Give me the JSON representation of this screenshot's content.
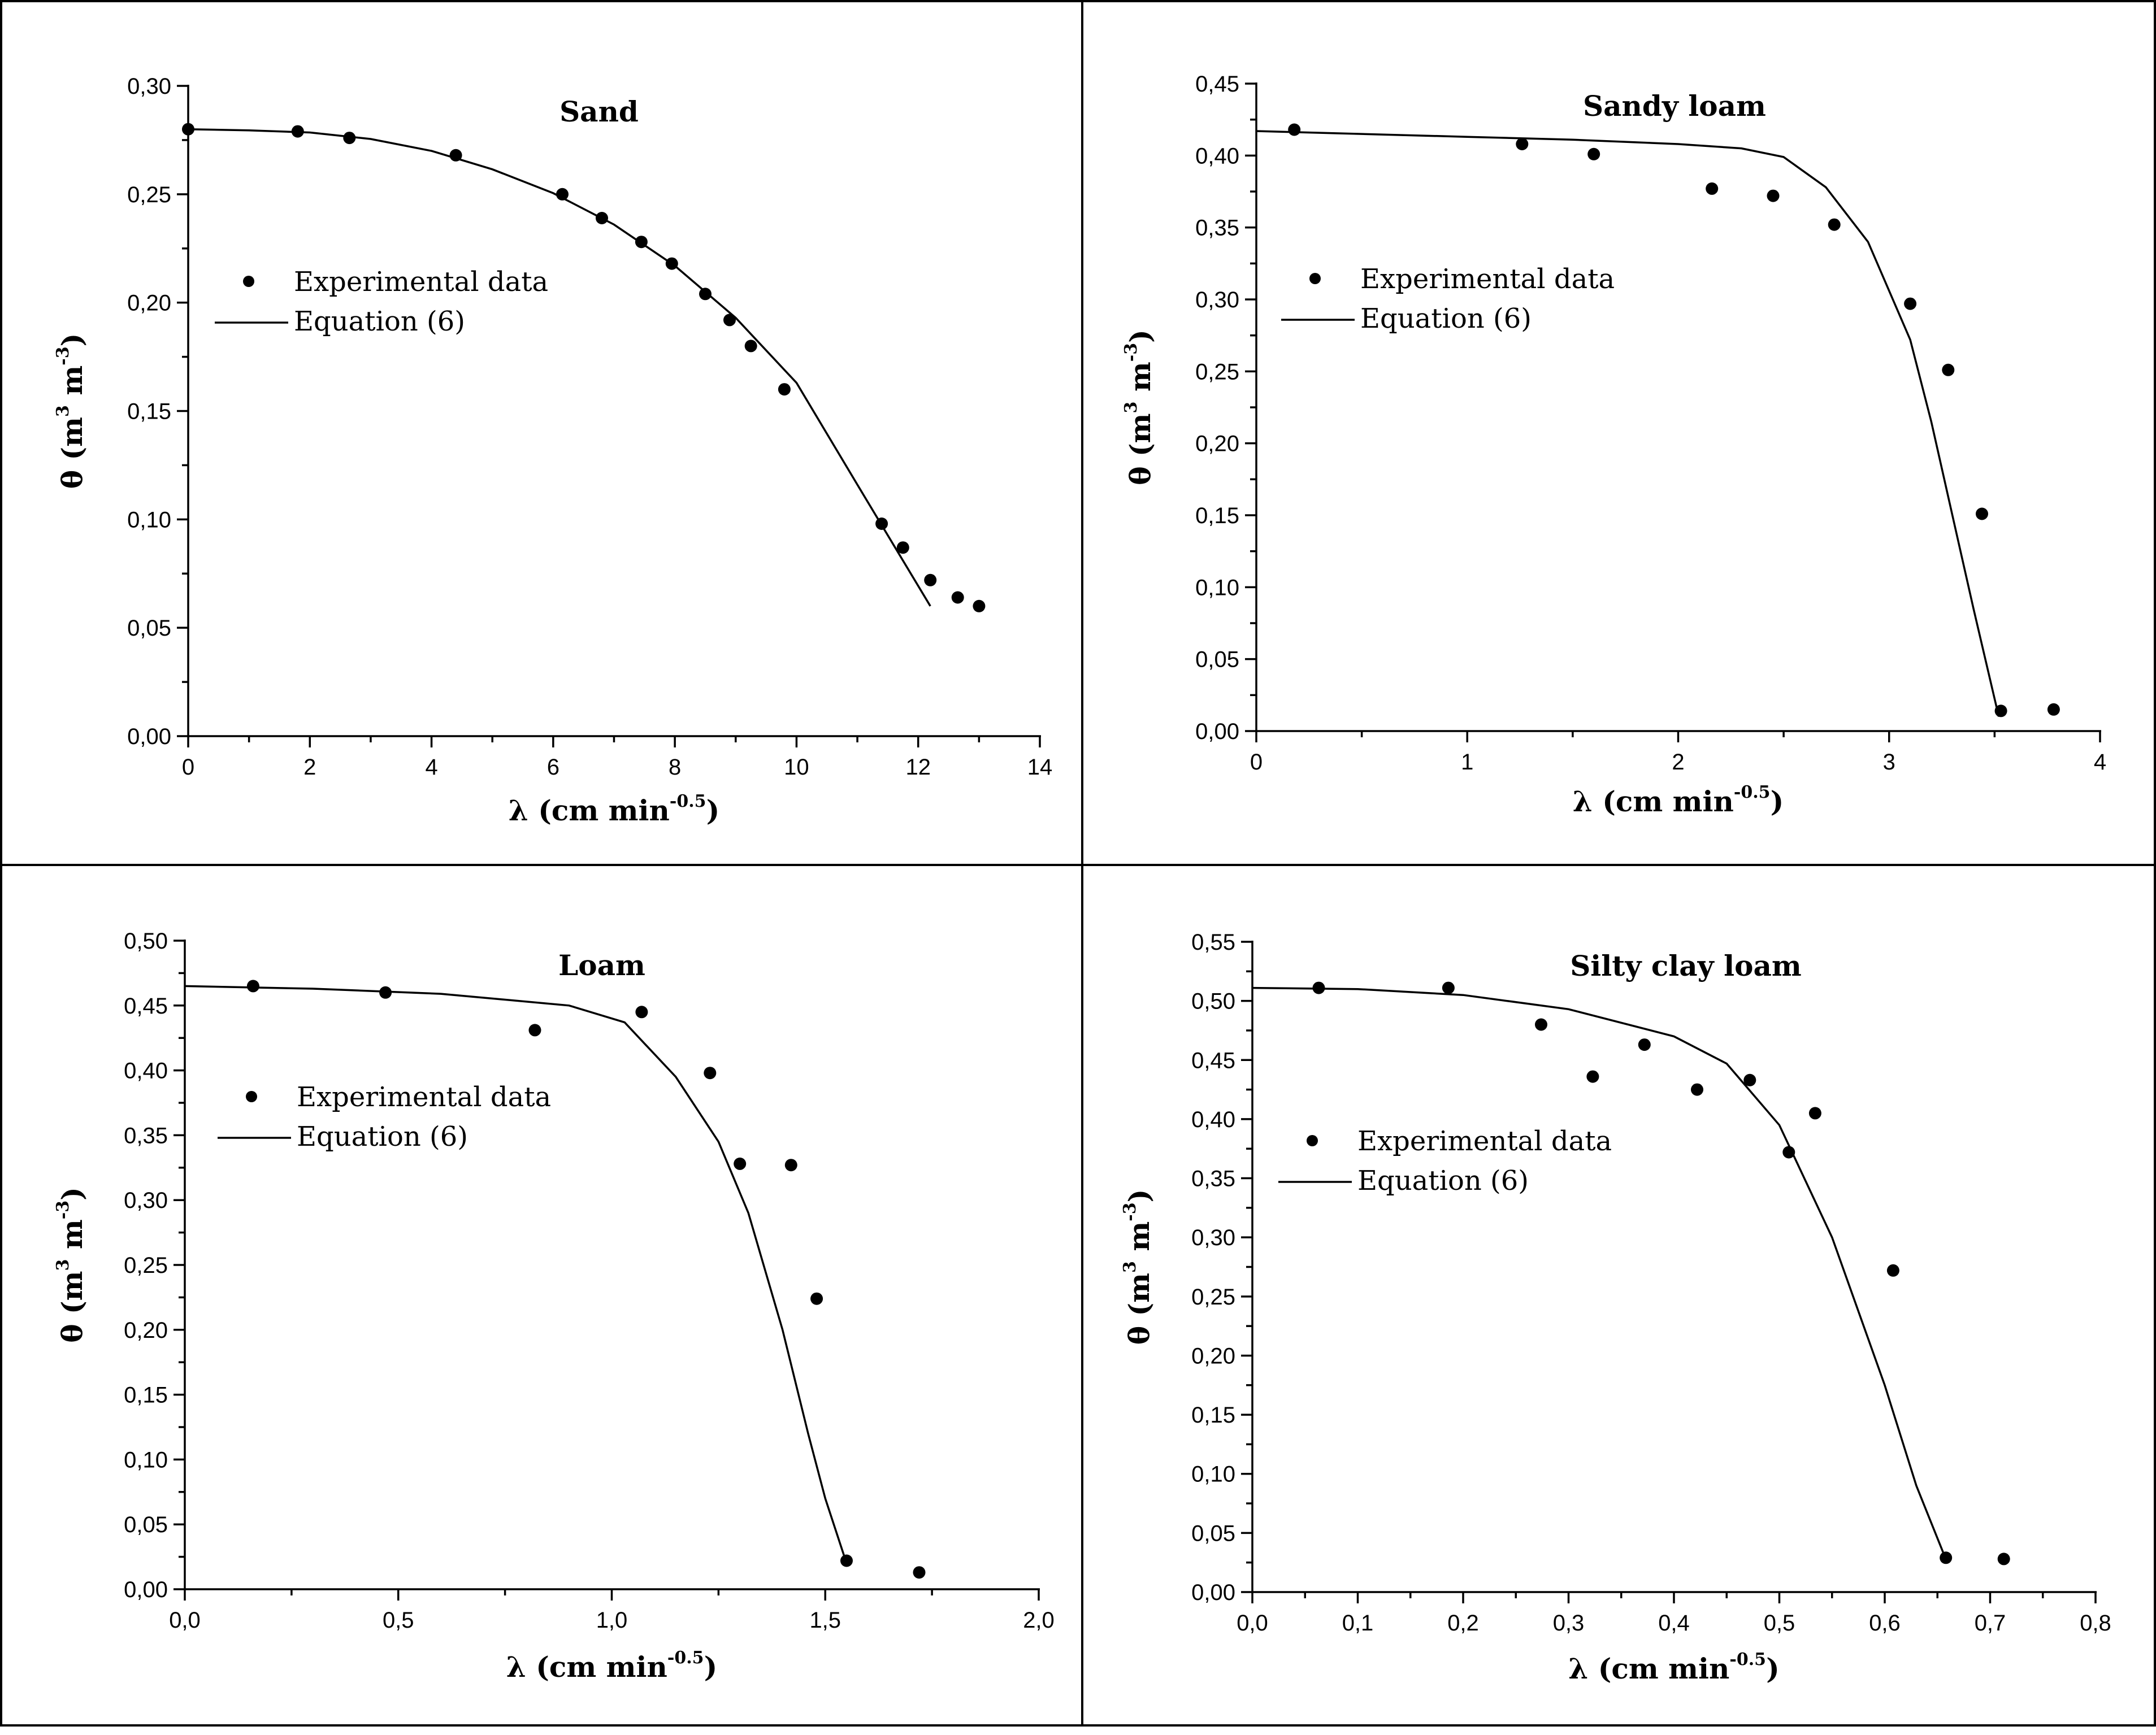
{
  "chart_data": [
    {
      "type": "scatter",
      "title": "Sand",
      "xlabel": "λ (cm min",
      "xlabel_sup": "-0.5",
      "xlabel_end": ")",
      "ylabel": "θ (m",
      "ylabel_sup1": "3",
      "ylabel_mid": " m",
      "ylabel_sup2": "-3",
      "ylabel_end": ")",
      "xlim": [
        0,
        14
      ],
      "ylim": [
        0,
        0.3
      ],
      "xticks": [
        0,
        2,
        4,
        6,
        8,
        10,
        12,
        14
      ],
      "xtick_labels": [
        "0",
        "2",
        "4",
        "6",
        "8",
        "10",
        "12",
        "14"
      ],
      "yticks": [
        0,
        0.05,
        0.1,
        0.15,
        0.2,
        0.25,
        0.3
      ],
      "ytick_labels": [
        "0,00",
        "0,05",
        "0,10",
        "0,15",
        "0,20",
        "0,25",
        "0,30"
      ],
      "legend": [
        "Experimental data",
        "Equation (6)"
      ],
      "series": [
        {
          "name": "Experimental data",
          "style": "points",
          "x": [
            0,
            1.8,
            2.65,
            4.4,
            6.15,
            6.8,
            7.45,
            7.95,
            8.5,
            8.9,
            9.25,
            9.8,
            11.4,
            11.75,
            12.2,
            12.65,
            13.0
          ],
          "y": [
            0.28,
            0.279,
            0.276,
            0.268,
            0.25,
            0.239,
            0.228,
            0.218,
            0.204,
            0.192,
            0.18,
            0.16,
            0.098,
            0.087,
            0.072,
            0.064,
            0.06
          ]
        },
        {
          "name": "Equation (6)",
          "style": "line",
          "x": [
            0,
            1,
            2,
            3,
            4,
            5,
            6,
            7,
            8,
            9,
            10,
            11,
            12.2
          ],
          "y": [
            0.28,
            0.2795,
            0.2785,
            0.2755,
            0.27,
            0.2615,
            0.2505,
            0.236,
            0.217,
            0.193,
            0.163,
            0.116,
            0.06
          ]
        }
      ]
    },
    {
      "type": "scatter",
      "title": "Sandy loam",
      "xlabel": "λ (cm min",
      "xlabel_sup": "-0.5",
      "xlabel_end": ")",
      "ylabel": "θ (m",
      "ylabel_sup1": "3",
      "ylabel_mid": " m",
      "ylabel_sup2": "-3",
      "ylabel_end": ")",
      "xlim": [
        0,
        4
      ],
      "ylim": [
        0,
        0.45
      ],
      "xticks": [
        0,
        1,
        2,
        3,
        4
      ],
      "xtick_labels": [
        "0",
        "1",
        "2",
        "3",
        "4"
      ],
      "yticks": [
        0,
        0.05,
        0.1,
        0.15,
        0.2,
        0.25,
        0.3,
        0.35,
        0.4,
        0.45
      ],
      "ytick_labels": [
        "0,00",
        "0,05",
        "0,10",
        "0,15",
        "0,20",
        "0,25",
        "0,30",
        "0,35",
        "0,40",
        "0,45"
      ],
      "legend": [
        "Experimental data",
        "Equation (6)"
      ],
      "series": [
        {
          "name": "Experimental data",
          "style": "points",
          "x": [
            0.18,
            1.26,
            1.6,
            2.16,
            2.45,
            2.74,
            3.1,
            3.28,
            3.44,
            3.53,
            3.78
          ],
          "y": [
            0.418,
            0.408,
            0.401,
            0.377,
            0.372,
            0.352,
            0.297,
            0.251,
            0.151,
            0.014,
            0.015
          ]
        },
        {
          "name": "Equation (6)",
          "style": "line",
          "x": [
            0,
            0.5,
            1.0,
            1.5,
            2.0,
            2.3,
            2.5,
            2.7,
            2.9,
            3.1,
            3.2,
            3.3,
            3.4,
            3.52
          ],
          "y": [
            0.417,
            0.415,
            0.413,
            0.411,
            0.408,
            0.405,
            0.399,
            0.378,
            0.34,
            0.272,
            0.215,
            0.15,
            0.085,
            0.01
          ]
        }
      ]
    },
    {
      "type": "scatter",
      "title": "Loam",
      "xlabel": "λ (cm min",
      "xlabel_sup": "-0.5",
      "xlabel_end": ")",
      "ylabel": "θ (m",
      "ylabel_sup1": "3",
      "ylabel_mid": " m",
      "ylabel_sup2": "-3",
      "ylabel_end": ")",
      "xlim": [
        0,
        2.0
      ],
      "ylim": [
        0,
        0.5
      ],
      "xticks": [
        0,
        0.5,
        1.0,
        1.5,
        2.0
      ],
      "xtick_labels": [
        "0,0",
        "0,5",
        "1,0",
        "1,5",
        "2,0"
      ],
      "yticks": [
        0,
        0.05,
        0.1,
        0.15,
        0.2,
        0.25,
        0.3,
        0.35,
        0.4,
        0.45,
        0.5
      ],
      "ytick_labels": [
        "0,00",
        "0,05",
        "0,10",
        "0,15",
        "0,20",
        "0,25",
        "0,30",
        "0,35",
        "0,40",
        "0,45",
        "0,50"
      ],
      "legend": [
        "Experimental data",
        "Equation (6)"
      ],
      "series": [
        {
          "name": "Experimental data",
          "style": "points",
          "x": [
            0.16,
            0.47,
            0.82,
            1.07,
            1.23,
            1.3,
            1.42,
            1.48,
            1.55,
            1.72
          ],
          "y": [
            0.465,
            0.46,
            0.431,
            0.445,
            0.398,
            0.328,
            0.327,
            0.224,
            0.022,
            0.013
          ]
        },
        {
          "name": "Equation (6)",
          "style": "line",
          "x": [
            0,
            0.3,
            0.6,
            0.9,
            1.03,
            1.15,
            1.25,
            1.32,
            1.4,
            1.46,
            1.5,
            1.545
          ],
          "y": [
            0.465,
            0.463,
            0.459,
            0.45,
            0.437,
            0.395,
            0.345,
            0.29,
            0.2,
            0.12,
            0.07,
            0.025
          ]
        }
      ]
    },
    {
      "type": "scatter",
      "title": "Silty clay loam",
      "xlabel": "λ (cm min",
      "xlabel_sup": "-0.5",
      "xlabel_end": ")",
      "ylabel": "θ (m",
      "ylabel_sup1": "3",
      "ylabel_mid": " m",
      "ylabel_sup2": "-3",
      "ylabel_end": ")",
      "xlim": [
        0,
        0.8
      ],
      "ylim": [
        0,
        0.55
      ],
      "xticks": [
        0,
        0.1,
        0.2,
        0.3,
        0.4,
        0.5,
        0.6,
        0.7,
        0.8
      ],
      "xtick_labels": [
        "0,0",
        "0,1",
        "0,2",
        "0,3",
        "0,4",
        "0,5",
        "0,6",
        "0,7",
        "0,8"
      ],
      "yticks": [
        0,
        0.05,
        0.1,
        0.15,
        0.2,
        0.25,
        0.3,
        0.35,
        0.4,
        0.45,
        0.5,
        0.55
      ],
      "ytick_labels": [
        "0,00",
        "0,05",
        "0,10",
        "0,15",
        "0,20",
        "0,25",
        "0,30",
        "0,35",
        "0,40",
        "0,45",
        "0,50",
        "0,55"
      ],
      "legend": [
        "Experimental data",
        "Equation (6)"
      ],
      "series": [
        {
          "name": "Experimental data",
          "style": "points",
          "x": [
            0.063,
            0.186,
            0.274,
            0.323,
            0.372,
            0.422,
            0.472,
            0.509,
            0.534,
            0.608,
            0.658,
            0.713
          ],
          "y": [
            0.511,
            0.511,
            0.48,
            0.436,
            0.463,
            0.425,
            0.433,
            0.372,
            0.405,
            0.272,
            0.029,
            0.028
          ]
        },
        {
          "name": "Equation (6)",
          "style": "line",
          "x": [
            0,
            0.1,
            0.2,
            0.3,
            0.4,
            0.45,
            0.5,
            0.55,
            0.6,
            0.63,
            0.657
          ],
          "y": [
            0.511,
            0.51,
            0.505,
            0.493,
            0.47,
            0.447,
            0.395,
            0.3,
            0.175,
            0.09,
            0.03
          ]
        }
      ]
    }
  ]
}
